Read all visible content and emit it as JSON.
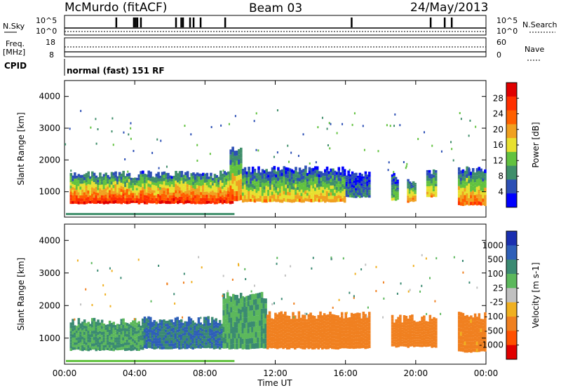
{
  "header": {
    "station": "McMurdo (fitACF)",
    "beam": "Beam 03",
    "date": "24/May/2013"
  },
  "status_panels": {
    "nsky_label": "N.Sky",
    "nsearch_label": "N.Search",
    "noise_ticks_left": [
      "10^5",
      "10^0"
    ],
    "noise_ticks_right": [
      "10^5",
      "10^0"
    ],
    "freq_label_line1": "Freq.",
    "freq_label_line2": "[MHz]",
    "freq_ticks": [
      "18",
      "8"
    ],
    "nave_label": "Nave",
    "nave_ticks": [
      "60",
      "0"
    ],
    "cpid_label": "CPID",
    "cpid_value": "normal (fast) 151 RF"
  },
  "colors": {
    "power_scale": [
      "#0000ff",
      "#2c4fb5",
      "#3f8e6a",
      "#62c23f",
      "#e8e030",
      "#f0a020",
      "#ff6000",
      "#ff3000",
      "#e00000"
    ],
    "velocity_scale": [
      "#1a2fb0",
      "#2e5fb8",
      "#3b8a72",
      "#5cb85c",
      "#c0c0c0",
      "#f0b020",
      "#f08020",
      "#ff5000",
      "#e00000"
    ]
  },
  "chart_data": [
    {
      "type": "heatmap",
      "title": "",
      "xlabel": "Time UT",
      "ylabel": "Slant Range [km]",
      "x_ticks": [
        "00:00",
        "04:00",
        "08:00",
        "12:00",
        "16:00",
        "20:00",
        "00:00"
      ],
      "y_ticks": [
        "1000",
        "2000",
        "3000",
        "4000"
      ],
      "ylim": [
        200,
        4500
      ],
      "colorbar_label": "Power [dB]",
      "colorbar_ticks": [
        "4",
        "8",
        "12",
        "16",
        "20",
        "24",
        "28"
      ],
      "clim": [
        0,
        30
      ],
      "echo_regions": [
        {
          "t0": 0.3,
          "t1": 9.6,
          "r0": 600,
          "r1": 1550,
          "level": 26
        },
        {
          "t0": 9.4,
          "t1": 10.1,
          "r0": 700,
          "r1": 2300,
          "level": 22
        },
        {
          "t0": 10.1,
          "t1": 16.0,
          "r0": 650,
          "r1": 1700,
          "level": 18
        },
        {
          "t0": 16.0,
          "t1": 17.4,
          "r0": 800,
          "r1": 1600,
          "level": 8
        },
        {
          "t0": 18.6,
          "t1": 19.0,
          "r0": 700,
          "r1": 1500,
          "level": 14
        },
        {
          "t0": 19.5,
          "t1": 20.0,
          "r0": 650,
          "r1": 1400,
          "level": 20
        },
        {
          "t0": 20.6,
          "t1": 21.2,
          "r0": 800,
          "r1": 1600,
          "level": 18
        },
        {
          "t0": 22.4,
          "t1": 24.0,
          "r0": 550,
          "r1": 1700,
          "level": 22
        }
      ]
    },
    {
      "type": "heatmap",
      "title": "",
      "xlabel": "Time UT",
      "ylabel": "Slant Range [km]",
      "x_ticks": [
        "00:00",
        "04:00",
        "08:00",
        "12:00",
        "16:00",
        "20:00",
        "00:00"
      ],
      "y_ticks": [
        "1000",
        "2000",
        "3000",
        "4000"
      ],
      "ylim": [
        200,
        4500
      ],
      "colorbar_label": "Velocity [m s-1]",
      "colorbar_ticks": [
        "1000",
        "500",
        "100",
        "25",
        "-25",
        "-100",
        "-500",
        "-1000"
      ],
      "clim": [
        -1000,
        1000
      ],
      "echo_regions": [
        {
          "t0": 0.3,
          "t1": 4.5,
          "r0": 600,
          "r1": 1500,
          "level": 100
        },
        {
          "t0": 4.5,
          "t1": 9.0,
          "r0": 650,
          "r1": 1550,
          "level": 500
        },
        {
          "t0": 9.0,
          "t1": 11.5,
          "r0": 650,
          "r1": 2300,
          "level": 100
        },
        {
          "t0": 11.5,
          "t1": 17.4,
          "r0": 650,
          "r1": 1700,
          "level": -300
        },
        {
          "t0": 18.6,
          "t1": 21.2,
          "r0": 700,
          "r1": 1600,
          "level": -300
        },
        {
          "t0": 22.4,
          "t1": 24.0,
          "r0": 550,
          "r1": 1700,
          "level": -200
        }
      ]
    }
  ]
}
